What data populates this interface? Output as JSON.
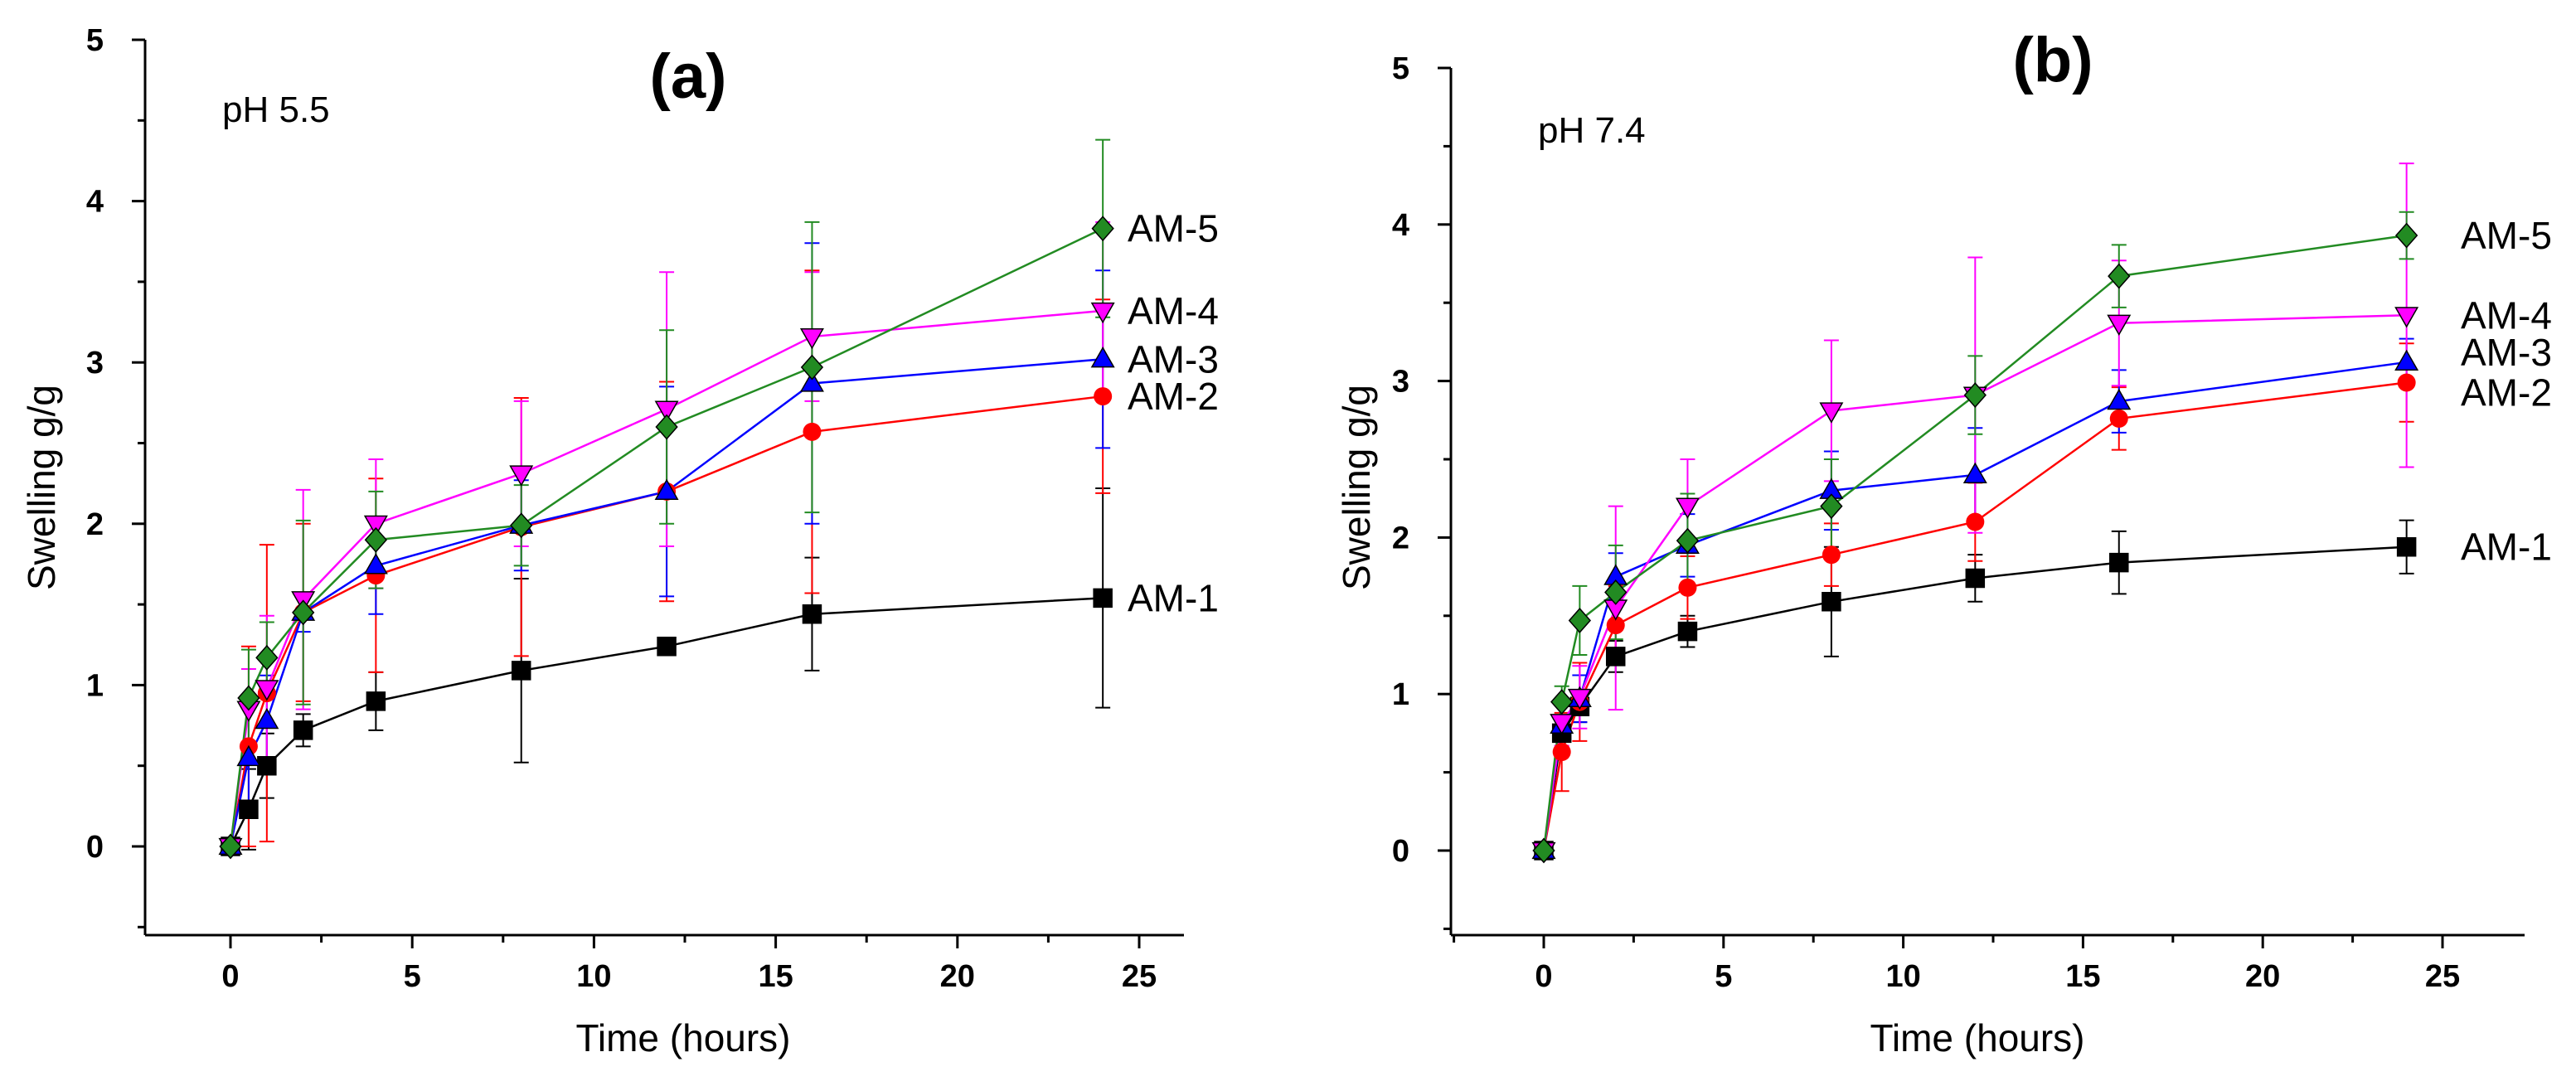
{
  "chart_data": [
    {
      "type": "line",
      "panel_label": "(a)",
      "annotation": "pH 5.5",
      "xlabel": "Time (hours)",
      "ylabel": "Swelling g/g",
      "xlim": [
        -2.5,
        26.5
      ],
      "ylim": [
        -0.5,
        5
      ],
      "xticks": [
        0,
        5,
        10,
        15,
        20,
        25
      ],
      "yticks": [
        0,
        1,
        2,
        3,
        4,
        5
      ],
      "x": [
        0,
        0.5,
        1,
        2,
        4,
        8,
        12,
        16,
        24
      ],
      "series": [
        {
          "name": "AM-1",
          "color": "#000000",
          "marker": "square",
          "values": [
            0,
            0.23,
            0.5,
            0.72,
            0.9,
            1.09,
            1.24,
            1.44,
            1.54
          ],
          "errors": [
            0,
            0.25,
            0.2,
            0.1,
            0.18,
            0.57,
            0.05,
            0.35,
            0.68
          ]
        },
        {
          "name": "AM-2",
          "color": "#ff0000",
          "marker": "circle",
          "values": [
            0,
            0.62,
            0.95,
            1.45,
            1.68,
            1.98,
            2.2,
            2.57,
            2.79
          ],
          "errors": [
            0,
            0.62,
            0.92,
            0.55,
            0.6,
            0.8,
            0.68,
            1.0,
            0.6
          ]
        },
        {
          "name": "AM-3",
          "color": "#0000ff",
          "marker": "triangle-up",
          "values": [
            0,
            0.55,
            0.78,
            1.45,
            1.74,
            1.99,
            2.2,
            2.87,
            3.02
          ],
          "errors": [
            0,
            0.32,
            0.28,
            0.12,
            0.3,
            0.28,
            0.65,
            0.87,
            0.55
          ]
        },
        {
          "name": "AM-4",
          "color": "#ff00ff",
          "marker": "triangle-down",
          "values": [
            0,
            0.85,
            0.98,
            1.53,
            2.0,
            2.31,
            2.71,
            3.16,
            3.32
          ],
          "errors": [
            0,
            0.25,
            0.45,
            0.68,
            0.4,
            0.45,
            0.85,
            0.4,
            0.55
          ]
        },
        {
          "name": "AM-5",
          "color": "#228b22",
          "marker": "diamond",
          "values": [
            0,
            0.92,
            1.17,
            1.45,
            1.9,
            1.99,
            2.6,
            2.97,
            3.83
          ],
          "errors": [
            0,
            0.3,
            0.22,
            0.57,
            0.3,
            0.25,
            0.6,
            0.9,
            0.55
          ]
        }
      ]
    },
    {
      "type": "line",
      "panel_label": "(b)",
      "annotation": "pH 7.4",
      "xlabel": "Time (hours)",
      "ylabel": "Swelling g/g",
      "xlim": [
        -2.5,
        26.5
      ],
      "ylim": [
        -0.5,
        5
      ],
      "xticks": [
        0,
        5,
        10,
        15,
        20,
        25
      ],
      "yticks": [
        0,
        1,
        2,
        3,
        4,
        5
      ],
      "x": [
        0,
        0.5,
        1,
        2,
        4,
        8,
        12,
        16,
        24
      ],
      "series": [
        {
          "name": "AM-1",
          "color": "#000000",
          "marker": "square",
          "values": [
            0,
            0.75,
            0.92,
            1.24,
            1.4,
            1.59,
            1.74,
            1.84,
            1.94
          ],
          "errors": [
            0,
            0.1,
            0.1,
            0.1,
            0.1,
            0.35,
            0.15,
            0.2,
            0.17
          ]
        },
        {
          "name": "AM-2",
          "color": "#ff0000",
          "marker": "circle",
          "values": [
            0,
            0.63,
            0.95,
            1.44,
            1.68,
            1.89,
            2.1,
            2.76,
            2.99
          ],
          "errors": [
            0,
            0.25,
            0.25,
            0.25,
            0.2,
            0.2,
            0.25,
            0.2,
            0.25
          ]
        },
        {
          "name": "AM-3",
          "color": "#0000ff",
          "marker": "triangle-up",
          "values": [
            0,
            0.8,
            0.97,
            1.75,
            1.95,
            2.3,
            2.4,
            2.87,
            3.12
          ],
          "errors": [
            0,
            0.15,
            0.15,
            0.15,
            0.2,
            0.25,
            0.3,
            0.2,
            0.15
          ]
        },
        {
          "name": "AM-4",
          "color": "#ff00ff",
          "marker": "triangle-down",
          "values": [
            0,
            0.82,
            0.98,
            1.55,
            2.2,
            2.81,
            2.91,
            3.37,
            3.42
          ],
          "errors": [
            0,
            0.15,
            0.2,
            0.65,
            0.3,
            0.45,
            0.88,
            0.4,
            0.97
          ]
        },
        {
          "name": "AM-5",
          "color": "#228b22",
          "marker": "diamond",
          "values": [
            0,
            0.95,
            1.47,
            1.65,
            1.98,
            2.2,
            2.91,
            3.67,
            3.93
          ],
          "errors": [
            0,
            0.1,
            0.22,
            0.3,
            0.3,
            0.3,
            0.25,
            0.2,
            0.15
          ]
        }
      ]
    }
  ]
}
